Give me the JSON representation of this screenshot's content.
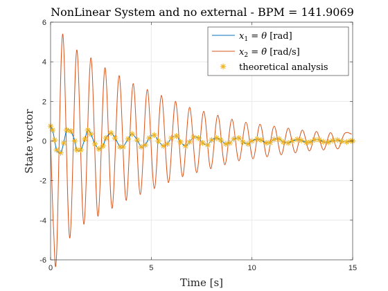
{
  "chart_data": {
    "type": "line",
    "title": "NonLinear System and no external - BPM = 141.9069",
    "xlabel": "Time [s]",
    "ylabel": "State vector",
    "xlim": [
      0,
      15
    ],
    "ylim": [
      -6,
      6
    ],
    "xticks": [
      0,
      5,
      10,
      15
    ],
    "yticks": [
      -6,
      -4,
      -2,
      0,
      2,
      4,
      6
    ],
    "xtick_labels": [
      "0",
      "5",
      "10",
      "15"
    ],
    "ytick_labels": [
      "-6",
      "-4",
      "-2",
      "0",
      "2",
      "4",
      "6"
    ],
    "grid": true,
    "legend_position": "top-right",
    "series": [
      {
        "name": "x1 = θ [rad]",
        "color": "#0072BD",
        "style": "line",
        "x": [
          0,
          0.1,
          0.2,
          0.3,
          0.5,
          0.65,
          0.8,
          1.0,
          1.2,
          1.3,
          1.5,
          1.7,
          1.85,
          2.0,
          2.2,
          2.4,
          2.6,
          2.75,
          3.0,
          3.2,
          3.45,
          3.6,
          3.85,
          4.05,
          4.3,
          4.5,
          4.7,
          4.9,
          5.15,
          5.35,
          5.6,
          5.8,
          6.0,
          6.25,
          6.45,
          6.7,
          6.9,
          7.1,
          7.35,
          7.55,
          7.8,
          8.0,
          8.25,
          8.45,
          8.7,
          8.9,
          9.1,
          9.35,
          9.55,
          9.8,
          10.0,
          10.25,
          10.45,
          10.7,
          10.9,
          11.1,
          11.35,
          11.55,
          11.8,
          12.0,
          12.25,
          12.45,
          12.7,
          12.9,
          13.1,
          13.35,
          13.55,
          13.8,
          14.0,
          14.25,
          14.45,
          14.7,
          14.9,
          15.0
        ],
        "y": [
          0.75,
          0.55,
          0.05,
          -0.45,
          -0.6,
          -0.1,
          0.55,
          0.5,
          0.0,
          -0.45,
          -0.45,
          0.1,
          0.55,
          0.35,
          -0.15,
          -0.4,
          -0.25,
          0.15,
          0.4,
          0.15,
          -0.3,
          -0.3,
          0.1,
          0.35,
          0.05,
          -0.3,
          -0.2,
          0.15,
          0.3,
          0.0,
          -0.25,
          -0.15,
          0.15,
          0.25,
          -0.05,
          -0.25,
          -0.05,
          0.2,
          0.15,
          -0.1,
          -0.2,
          0.05,
          0.15,
          0.05,
          -0.15,
          -0.1,
          0.1,
          0.15,
          -0.05,
          -0.15,
          0.0,
          0.1,
          0.05,
          -0.1,
          -0.08,
          0.08,
          0.1,
          -0.05,
          -0.1,
          0.0,
          0.08,
          0.03,
          -0.08,
          -0.05,
          0.06,
          0.06,
          -0.04,
          -0.06,
          0.02,
          0.05,
          -0.02,
          -0.05,
          0.01,
          0.0
        ]
      },
      {
        "name": "x2 = θ̇ [rad/s]",
        "color": "#D95319",
        "style": "line",
        "x": [
          0,
          0.15,
          0.3,
          0.6,
          0.95,
          1.3,
          1.65,
          2.0,
          2.35,
          2.7,
          3.05,
          3.4,
          3.75,
          4.1,
          4.45,
          4.8,
          5.15,
          5.5,
          5.85,
          6.2,
          6.55,
          6.9,
          7.25,
          7.6,
          7.95,
          8.3,
          8.65,
          9.0,
          9.35,
          9.7,
          10.05,
          10.4,
          10.75,
          11.1,
          11.45,
          11.8,
          12.15,
          12.5,
          12.85,
          13.2,
          13.55,
          13.9,
          14.25,
          14.6,
          14.95
        ],
        "y": [
          0.0,
          -4.5,
          -5.7,
          5.4,
          -4.9,
          4.6,
          -4.2,
          4.2,
          -3.8,
          3.7,
          -3.4,
          3.3,
          -3.0,
          2.9,
          -2.7,
          2.6,
          -2.4,
          2.3,
          -2.1,
          2.0,
          -1.8,
          1.7,
          -1.6,
          1.5,
          -1.4,
          1.3,
          -1.2,
          1.1,
          -1.0,
          0.95,
          -0.9,
          0.85,
          -0.8,
          0.75,
          -0.7,
          0.65,
          -0.6,
          0.55,
          -0.5,
          0.48,
          -0.45,
          0.42,
          -0.4,
          0.38,
          0.35
        ]
      },
      {
        "name": "theoretical analysis",
        "color": "#EDB120",
        "style": "marker",
        "x": [
          0,
          0.1,
          0.2,
          0.3,
          0.5,
          0.65,
          0.8,
          1.0,
          1.2,
          1.3,
          1.5,
          1.7,
          1.85,
          2.0,
          2.2,
          2.4,
          2.6,
          2.75,
          3.0,
          3.2,
          3.45,
          3.6,
          3.85,
          4.05,
          4.3,
          4.5,
          4.7,
          4.9,
          5.15,
          5.35,
          5.6,
          5.8,
          6.0,
          6.25,
          6.45,
          6.7,
          6.9,
          7.1,
          7.35,
          7.55,
          7.8,
          8.0,
          8.25,
          8.45,
          8.7,
          8.9,
          9.1,
          9.35,
          9.55,
          9.8,
          10.0,
          10.25,
          10.45,
          10.7,
          10.9,
          11.1,
          11.35,
          11.55,
          11.8,
          12.0,
          12.25,
          12.45,
          12.7,
          12.9,
          13.1,
          13.35,
          13.55,
          13.8,
          14.0,
          14.25,
          14.45,
          14.7,
          14.9,
          15.0
        ],
        "y": [
          0.75,
          0.55,
          0.05,
          -0.45,
          -0.6,
          -0.1,
          0.55,
          0.5,
          0.0,
          -0.45,
          -0.45,
          0.1,
          0.55,
          0.35,
          -0.15,
          -0.4,
          -0.25,
          0.15,
          0.4,
          0.15,
          -0.3,
          -0.3,
          0.1,
          0.35,
          0.05,
          -0.3,
          -0.2,
          0.15,
          0.3,
          0.0,
          -0.25,
          -0.15,
          0.15,
          0.25,
          -0.05,
          -0.25,
          -0.05,
          0.2,
          0.15,
          -0.1,
          -0.2,
          0.05,
          0.15,
          0.05,
          -0.15,
          -0.1,
          0.1,
          0.15,
          -0.05,
          -0.15,
          0.0,
          0.1,
          0.05,
          -0.1,
          -0.08,
          0.08,
          0.1,
          -0.05,
          -0.1,
          0.0,
          0.08,
          0.03,
          -0.08,
          -0.05,
          0.06,
          0.06,
          -0.04,
          -0.06,
          0.02,
          0.05,
          -0.02,
          -0.05,
          0.01,
          0.0
        ]
      }
    ]
  }
}
